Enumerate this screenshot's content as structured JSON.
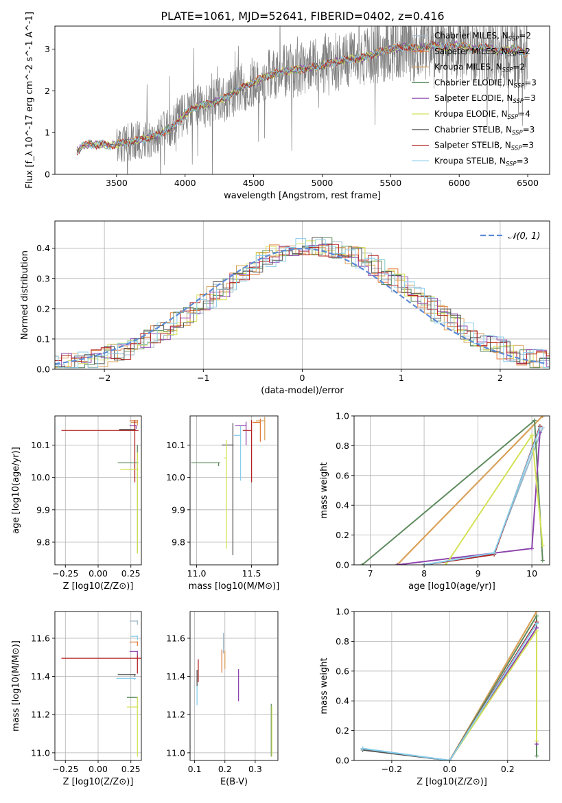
{
  "figure_title": "PLATE=1061, MJD=52641, FIBERID=0402, z=0.416",
  "colors": {
    "chabrier_miles": "#9fb8c8",
    "salpeter_miles": "#e07b39",
    "kroupa_miles": "#d9a35a",
    "chabrier_elodie": "#5f8b5f",
    "salpeter_elodie": "#8e44ad",
    "kroupa_elodie": "#d4e157",
    "chabrier_stelib": "#555555",
    "salpeter_stelib": "#b22222",
    "kroupa_stelib": "#87ceeb",
    "gaussian": "#5b8bd8",
    "observed": "#808080"
  },
  "chart_data": [
    {
      "id": "spectrum",
      "type": "line",
      "xlabel": "wavelength [Angstrom, rest frame]",
      "ylabel": "Flux [f_λ 10^-17 erg cm^-2 s^-1 A^-1]",
      "xlim": [
        3050,
        6660
      ],
      "ylim": [
        0,
        3.55
      ],
      "xticks": [
        3500,
        4000,
        4500,
        5000,
        5500,
        6000,
        6500
      ],
      "yticks": [
        0,
        1,
        2,
        3
      ],
      "grid": false,
      "legend_position": "top-right",
      "series": [
        {
          "name": "Chabrier MILES, N_SSP=2",
          "color_key": "chabrier_miles"
        },
        {
          "name": "Salpeter MILES, N_SSP=2",
          "color_key": "salpeter_miles"
        },
        {
          "name": "Kroupa MILES, N_SSP=2",
          "color_key": "kroupa_miles"
        },
        {
          "name": "Chabrier ELODIE, N_SSP=3",
          "color_key": "chabrier_elodie"
        },
        {
          "name": "Salpeter ELODIE, N_SSP=3",
          "color_key": "salpeter_elodie"
        },
        {
          "name": "Kroupa ELODIE, N_SSP=4",
          "color_key": "kroupa_elodie"
        },
        {
          "name": "Chabrier STELIB, N_SSP=3",
          "color_key": "chabrier_stelib"
        },
        {
          "name": "Salpeter STELIB, N_SSP=3",
          "color_key": "salpeter_stelib"
        },
        {
          "name": "Kroupa STELIB, N_SSP=3",
          "color_key": "kroupa_stelib"
        }
      ],
      "model_curve": {
        "x": [
          3210,
          3250,
          3300,
          3350,
          3400,
          3450,
          3500,
          3600,
          3700,
          3800,
          3900,
          4000,
          4100,
          4200,
          4300,
          4400,
          4500,
          4600,
          4700,
          4800,
          4900,
          5000,
          5100,
          5200,
          5300,
          5400,
          5500,
          5600,
          5700,
          5800,
          5900,
          6000,
          6100,
          6200,
          6300,
          6400,
          6500
        ],
        "y": [
          0.55,
          0.68,
          0.72,
          0.7,
          0.73,
          0.68,
          0.72,
          0.78,
          0.85,
          0.95,
          1.1,
          1.45,
          1.65,
          1.7,
          1.85,
          2.05,
          2.2,
          2.35,
          2.45,
          2.5,
          2.55,
          2.6,
          2.7,
          2.75,
          2.8,
          2.9,
          3.0,
          3.05,
          3.0,
          3.1,
          3.05,
          3.1,
          3.0,
          3.05,
          2.95,
          3.0,
          2.9
        ]
      },
      "observed_start": 3500
    },
    {
      "id": "residuals",
      "type": "bar",
      "xlabel": "(data-model)/error",
      "ylabel": "Normed distribution",
      "xlim": [
        -2.5,
        2.5
      ],
      "ylim": [
        0,
        0.49
      ],
      "xticks": [
        -2,
        -1,
        0,
        1,
        2
      ],
      "yticks": [
        0.0,
        0.1,
        0.2,
        0.3,
        0.4
      ],
      "grid": true,
      "legend": [
        {
          "name": "𝒩(0, 1)",
          "color_key": "gaussian"
        }
      ],
      "legend_position": "top-right",
      "bin_edges_step": 0.1
    },
    {
      "id": "age_vs_Z",
      "type": "scatter",
      "xlabel": "Z [log10(Z/Z⊙)]",
      "ylabel": "age  [log10(age/yr)]",
      "xlim": [
        -0.33,
        0.33
      ],
      "ylim": [
        9.73,
        10.19
      ],
      "xticks": [
        -0.25,
        0.0,
        0.25
      ],
      "yticks": [
        9.8,
        9.9,
        10.0,
        10.1
      ],
      "grid": true,
      "points": [
        {
          "color_key": "salpeter_miles",
          "x": 0.3,
          "y": 10.175,
          "xerr": 0.06,
          "yerr": 0.01
        },
        {
          "color_key": "kroupa_miles",
          "x": 0.3,
          "y": 10.17,
          "xerr": 0.05,
          "yerr": 0.01
        },
        {
          "color_key": "salpeter_elodie",
          "x": 0.29,
          "y": 10.16,
          "xerr": 0.05,
          "yerr": 0.01
        },
        {
          "color_key": "chabrier_stelib",
          "x": 0.28,
          "y": 10.148,
          "xerr": 0.12,
          "yerr": 0.005
        },
        {
          "color_key": "salpeter_stelib",
          "x": 0.28,
          "y": 10.145,
          "xerr": 0.56,
          "yerr": 0.16
        },
        {
          "color_key": "chabrier_elodie",
          "x": 0.3,
          "y": 10.045,
          "xerr": 0.15,
          "yerr": 0.28
        },
        {
          "color_key": "kroupa_elodie",
          "x": 0.3,
          "y": 10.025,
          "xerr": 0.13,
          "yerr": 0.26
        }
      ]
    },
    {
      "id": "age_vs_mass",
      "type": "scatter",
      "xlabel": "mass [log10(M/M⊙)]",
      "ylabel": "",
      "xlim": [
        10.94,
        11.74
      ],
      "ylim": [
        9.73,
        10.19
      ],
      "xticks": [
        11.0,
        11.5
      ],
      "yticks": [
        9.8,
        9.9,
        10.0,
        10.1
      ],
      "grid": true,
      "points": [
        {
          "color_key": "kroupa_miles",
          "x": 11.62,
          "y": 10.175,
          "xerr": 0.08,
          "yerr": 0.06
        },
        {
          "color_key": "salpeter_miles",
          "x": 11.58,
          "y": 10.17,
          "xerr": 0.07,
          "yerr": 0.06
        },
        {
          "color_key": "salpeter_elodie",
          "x": 11.45,
          "y": 10.16,
          "xerr": 0.1,
          "yerr": 0.06
        },
        {
          "color_key": "salpeter_stelib",
          "x": 11.5,
          "y": 10.145,
          "xerr": 0.08,
          "yerr": 0.16
        },
        {
          "color_key": "kroupa_stelib",
          "x": 11.4,
          "y": 10.13,
          "xerr": 0.06,
          "yerr": 0.14
        },
        {
          "color_key": "chabrier_stelib",
          "x": 11.33,
          "y": 10.1,
          "xerr": 0.1,
          "yerr": 0.34
        },
        {
          "color_key": "chabrier_elodie",
          "x": 11.2,
          "y": 10.045,
          "xerr": 0.25,
          "yerr": 0.01
        },
        {
          "color_key": "kroupa_elodie",
          "x": 11.27,
          "y": 10.06,
          "xerr": 0.02,
          "yerr": 0.28
        }
      ]
    },
    {
      "id": "mass_weight_vs_age",
      "type": "line",
      "xlabel": "age  [log10(age/yr)]",
      "ylabel": "mass weight",
      "xlim": [
        6.7,
        10.33
      ],
      "ylim": [
        0,
        1
      ],
      "xticks": [
        7,
        8,
        9,
        10
      ],
      "yticks": [
        0.0,
        0.2,
        0.4,
        0.6,
        0.8,
        1.0
      ],
      "grid": true,
      "series": [
        {
          "color_key": "chabrier_miles",
          "x": [
            8.0,
            9.3,
            10.2
          ],
          "y": [
            0.0,
            0.08,
            0.92
          ]
        },
        {
          "color_key": "salpeter_miles",
          "x": [
            7.5,
            10.2
          ],
          "y": [
            0.0,
            1.0
          ]
        },
        {
          "color_key": "kroupa_miles",
          "x": [
            7.5,
            10.2
          ],
          "y": [
            0.0,
            1.0
          ]
        },
        {
          "color_key": "chabrier_elodie",
          "x": [
            6.85,
            10.05,
            10.2
          ],
          "y": [
            0.0,
            0.97,
            0.03
          ]
        },
        {
          "color_key": "salpeter_elodie",
          "x": [
            7.5,
            10.0,
            10.15
          ],
          "y": [
            0.0,
            0.11,
            0.89
          ]
        },
        {
          "color_key": "kroupa_elodie",
          "x": [
            8.4,
            10.0,
            10.2
          ],
          "y": [
            0.0,
            0.87,
            0.13
          ]
        },
        {
          "color_key": "chabrier_stelib",
          "x": [
            8.0,
            9.3,
            10.15
          ],
          "y": [
            0.0,
            0.07,
            0.93
          ]
        },
        {
          "color_key": "salpeter_stelib",
          "x": [
            8.0,
            9.3,
            10.15
          ],
          "y": [
            0.0,
            0.07,
            0.93
          ]
        },
        {
          "color_key": "kroupa_stelib",
          "x": [
            8.0,
            9.3,
            10.15
          ],
          "y": [
            0.0,
            0.08,
            0.92
          ]
        }
      ]
    },
    {
      "id": "mass_vs_Z",
      "type": "scatter",
      "xlabel": "Z [log10(Z/Z⊙)]",
      "ylabel": "mass [log10(M/M⊙)]",
      "xlim": [
        -0.33,
        0.33
      ],
      "ylim": [
        10.96,
        11.74
      ],
      "xticks": [
        -0.25,
        0.0,
        0.25
      ],
      "yticks": [
        11.0,
        11.2,
        11.4,
        11.6
      ],
      "grid": true,
      "points": [
        {
          "color_key": "chabrier_miles",
          "x": 0.3,
          "y": 11.69,
          "xerr": 0.06,
          "yerr": 0.02
        },
        {
          "color_key": "kroupa_stelib",
          "x": 0.3,
          "y": 11.61,
          "xerr": 0.05,
          "yerr": 0.02
        },
        {
          "color_key": "salpeter_miles",
          "x": 0.3,
          "y": 11.58,
          "xerr": 0.06,
          "yerr": 0.02
        },
        {
          "color_key": "salpeter_elodie",
          "x": 0.3,
          "y": 11.53,
          "xerr": 0.06,
          "yerr": 0.02
        },
        {
          "color_key": "salpeter_stelib",
          "x": 0.3,
          "y": 11.495,
          "xerr": 0.58,
          "yerr": 0.08
        },
        {
          "color_key": "chabrier_stelib",
          "x": 0.28,
          "y": 11.41,
          "xerr": 0.13,
          "yerr": 0.01
        },
        {
          "color_key": "kroupa_stelib",
          "x": 0.28,
          "y": 11.39,
          "xerr": 0.14,
          "yerr": 0.01
        },
        {
          "color_key": "chabrier_elodie",
          "x": 0.3,
          "y": 11.29,
          "xerr": 0.08,
          "yerr": 0.01
        },
        {
          "color_key": "kroupa_elodie",
          "x": 0.3,
          "y": 11.24,
          "xerr": 0.08,
          "yerr": 0.26
        }
      ]
    },
    {
      "id": "mass_vs_ebv",
      "type": "scatter",
      "xlabel": "E(B-V)",
      "ylabel": "",
      "xlim": [
        0.085,
        0.375
      ],
      "ylim": [
        10.96,
        11.74
      ],
      "xticks": [
        0.1,
        0.2,
        0.3
      ],
      "yticks": [
        11.0,
        11.2,
        11.4,
        11.6
      ],
      "grid": true,
      "points": [
        {
          "color_key": "chabrier_miles",
          "x": 0.195,
          "y": 11.61,
          "yerr": 0.09
        },
        {
          "color_key": "salpeter_miles",
          "x": 0.19,
          "y": 11.52,
          "yerr": 0.1
        },
        {
          "color_key": "salpeter_elodie",
          "x": 0.245,
          "y": 11.41,
          "yerr": 0.14
        },
        {
          "color_key": "salpeter_stelib",
          "x": 0.112,
          "y": 11.47,
          "yerr": 0.1
        },
        {
          "color_key": "kroupa_stelib",
          "x": 0.108,
          "y": 11.35,
          "yerr": 0.1
        },
        {
          "color_key": "chabrier_stelib",
          "x": 0.108,
          "y": 11.42,
          "yerr": 0.07
        },
        {
          "color_key": "chabrier_elodie",
          "x": 0.353,
          "y": 11.21,
          "yerr": 0.23
        },
        {
          "color_key": "kroupa_elodie",
          "x": 0.355,
          "y": 11.2,
          "yerr": 0.22
        },
        {
          "color_key": "kroupa_miles",
          "x": 0.2,
          "y": 11.52,
          "yerr": 0.08
        }
      ]
    },
    {
      "id": "mass_weight_vs_Z",
      "type": "line",
      "xlabel": "Z [log10(Z/Z⊙)]",
      "ylabel": "mass weight",
      "xlim": [
        -0.33,
        0.345
      ],
      "ylim": [
        0,
        1
      ],
      "xticks": [
        -0.2,
        0.0,
        0.2
      ],
      "yticks": [
        0.0,
        0.2,
        0.4,
        0.6,
        0.8,
        1.0
      ],
      "grid": true,
      "series": [
        {
          "color_key": "chabrier_miles",
          "x": [
            -0.3,
            0.0,
            0.3
          ],
          "y": [
            0.08,
            0.0,
            0.92
          ]
        },
        {
          "color_key": "salpeter_miles",
          "x": [
            0.0,
            0.3
          ],
          "y": [
            0.0,
            1.0
          ]
        },
        {
          "color_key": "kroupa_miles",
          "x": [
            0.0,
            0.3
          ],
          "y": [
            0.0,
            1.0
          ]
        },
        {
          "color_key": "chabrier_elodie",
          "x": [
            0.0,
            0.3,
            0.3
          ],
          "y": [
            0.0,
            0.97,
            0.03
          ]
        },
        {
          "color_key": "salpeter_elodie",
          "x": [
            0.0,
            0.3,
            0.3
          ],
          "y": [
            0.0,
            0.89,
            0.11
          ]
        },
        {
          "color_key": "kroupa_elodie",
          "x": [
            0.0,
            0.3,
            0.3
          ],
          "y": [
            0.0,
            0.87,
            0.13
          ]
        },
        {
          "color_key": "chabrier_stelib",
          "x": [
            -0.3,
            0.0,
            0.3
          ],
          "y": [
            0.07,
            0.0,
            0.93
          ]
        },
        {
          "color_key": "salpeter_stelib",
          "x": [
            0.0,
            0.3
          ],
          "y": [
            0.0,
            0.93
          ]
        },
        {
          "color_key": "kroupa_stelib",
          "x": [
            -0.3,
            0.0,
            0.3
          ],
          "y": [
            0.08,
            0.0,
            0.92
          ]
        }
      ]
    }
  ]
}
